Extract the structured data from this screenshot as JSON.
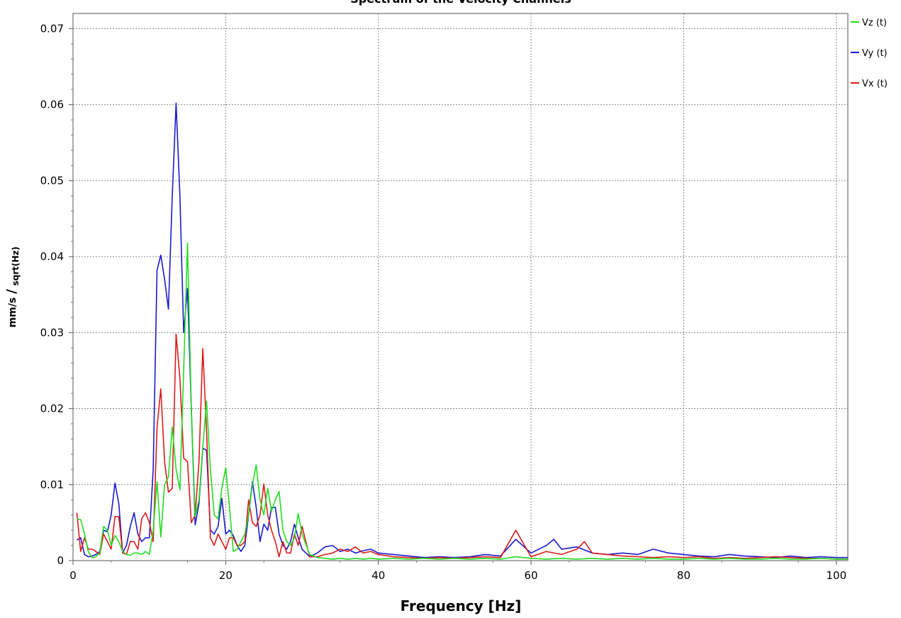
{
  "chart_data": {
    "type": "line",
    "title": "Spectrum of the Velocity Channels",
    "xlabel": "Frequency [Hz]",
    "ylabel_main": "mm/s",
    "ylabel_sub": "sqrt(Hz)",
    "xlim": [
      0,
      101.5
    ],
    "ylim": [
      0,
      0.072
    ],
    "xticks": [
      0,
      20,
      40,
      60,
      80,
      100
    ],
    "xtick_labels": [
      "0",
      "20",
      "40",
      "60",
      "80",
      "100"
    ],
    "yticks": [
      0,
      0.01,
      0.02,
      0.03,
      0.04,
      0.05,
      0.06,
      0.07
    ],
    "ytick_labels": [
      "0",
      "0.01",
      "0.02",
      "0.03",
      "0.04",
      "0.05",
      "0.06",
      "0.07"
    ],
    "grid": true,
    "legend_position": "top-right",
    "series": [
      {
        "name": "Vz (t)",
        "color": "#22dd22",
        "x": [
          0.5,
          1,
          1.5,
          2,
          2.5,
          3,
          3.5,
          4,
          4.5,
          5,
          5.5,
          6,
          6.5,
          7,
          7.5,
          8,
          8.5,
          9,
          9.5,
          10,
          10.5,
          11,
          11.5,
          12,
          12.5,
          13,
          13.5,
          14,
          14.5,
          15,
          15.5,
          16,
          16.5,
          17,
          17.5,
          18,
          18.5,
          19,
          19.5,
          20,
          20.5,
          21,
          21.5,
          22,
          22.5,
          23,
          23.5,
          24,
          24.5,
          25,
          25.5,
          26,
          26.5,
          27,
          27.5,
          28,
          28.5,
          29,
          29.5,
          30,
          31,
          32,
          33,
          34,
          35,
          36,
          37,
          38,
          39,
          40,
          42,
          44,
          46,
          48,
          50,
          52,
          54,
          56,
          58,
          60,
          62,
          64,
          66,
          68,
          70,
          72,
          74,
          76,
          78,
          80,
          82,
          84,
          86,
          88,
          90,
          92,
          94,
          96,
          98,
          100,
          101.5
        ],
        "y": [
          0.0055,
          0.0054,
          0.0035,
          0.0012,
          0.0004,
          0.0005,
          0.001,
          0.0045,
          0.004,
          0.002,
          0.0033,
          0.0025,
          0.0012,
          0.0008,
          0.0007,
          0.001,
          0.001,
          0.0008,
          0.0012,
          0.0008,
          0.004,
          0.0104,
          0.0031,
          0.01,
          0.011,
          0.0176,
          0.012,
          0.0093,
          0.025,
          0.0418,
          0.02,
          0.0058,
          0.008,
          0.015,
          0.021,
          0.012,
          0.006,
          0.0055,
          0.0095,
          0.0122,
          0.007,
          0.0012,
          0.0015,
          0.0025,
          0.0035,
          0.006,
          0.01,
          0.0126,
          0.008,
          0.006,
          0.0095,
          0.0065,
          0.008,
          0.0091,
          0.004,
          0.0025,
          0.002,
          0.003,
          0.0062,
          0.0035,
          0.0008,
          0.0004,
          0.0003,
          0.0002,
          0.0003,
          0.0002,
          0.0003,
          0.0002,
          0.0003,
          0.0002,
          0.0003,
          0.0002,
          0.0003,
          0.0002,
          0.0003,
          0.0002,
          0.0003,
          0.0002,
          0.0005,
          0.0003,
          0.0002,
          0.0003,
          0.0002,
          0.0003,
          0.0002,
          0.0003,
          0.0002,
          0.0003,
          0.0002,
          0.0002,
          0.0003,
          0.0002,
          0.0003,
          0.0002,
          0.0002,
          0.0003,
          0.0002,
          0.0002,
          0.0003,
          0.0002,
          0.0002
        ]
      },
      {
        "name": "Vy (t)",
        "color": "#1a1ad0",
        "x": [
          0.5,
          1,
          1.5,
          2,
          2.5,
          3,
          3.5,
          4,
          4.5,
          5,
          5.5,
          6,
          6.5,
          7,
          7.5,
          8,
          8.5,
          9,
          9.5,
          10,
          10.5,
          11,
          11.5,
          12,
          12.5,
          13,
          13.5,
          14,
          14.5,
          15,
          15.5,
          16,
          16.5,
          17,
          17.5,
          18,
          18.5,
          19,
          19.5,
          20,
          20.5,
          21,
          21.5,
          22,
          22.5,
          23,
          23.5,
          24,
          24.5,
          25,
          25.5,
          26,
          26.5,
          27,
          27.5,
          28,
          28.5,
          29,
          29.5,
          30,
          31,
          32,
          33,
          34,
          35,
          36,
          37,
          38,
          39,
          40,
          42,
          44,
          46,
          48,
          50,
          52,
          54,
          56,
          58,
          60,
          62,
          63,
          64,
          66,
          68,
          70,
          72,
          74,
          76,
          78,
          80,
          82,
          84,
          86,
          88,
          90,
          92,
          94,
          96,
          98,
          100,
          101.5
        ],
        "y": [
          0.0027,
          0.003,
          0.0008,
          0.0005,
          0.0006,
          0.0008,
          0.0012,
          0.004,
          0.0038,
          0.006,
          0.0102,
          0.0075,
          0.001,
          0.002,
          0.0045,
          0.0063,
          0.0035,
          0.0025,
          0.003,
          0.003,
          0.012,
          0.0382,
          0.0402,
          0.037,
          0.0331,
          0.048,
          0.0602,
          0.048,
          0.03,
          0.0358,
          0.02,
          0.0047,
          0.0075,
          0.0148,
          0.0145,
          0.004,
          0.0035,
          0.0045,
          0.0082,
          0.0035,
          0.004,
          0.0033,
          0.002,
          0.0012,
          0.002,
          0.006,
          0.0104,
          0.007,
          0.0025,
          0.0048,
          0.004,
          0.007,
          0.007,
          0.0035,
          0.002,
          0.0015,
          0.0025,
          0.0048,
          0.003,
          0.0015,
          0.0005,
          0.001,
          0.0018,
          0.002,
          0.0012,
          0.0015,
          0.001,
          0.0013,
          0.0015,
          0.001,
          0.0008,
          0.0006,
          0.0004,
          0.0005,
          0.0004,
          0.0005,
          0.0008,
          0.0006,
          0.0028,
          0.001,
          0.002,
          0.0028,
          0.0015,
          0.0018,
          0.001,
          0.0008,
          0.001,
          0.0008,
          0.0015,
          0.001,
          0.0008,
          0.0006,
          0.0005,
          0.0008,
          0.0006,
          0.0005,
          0.0004,
          0.0006,
          0.0004,
          0.0005,
          0.0004,
          0.0004
        ]
      },
      {
        "name": "Vx (t)",
        "color": "#dd1a1a",
        "x": [
          0.5,
          1,
          1.5,
          2,
          2.5,
          3,
          3.5,
          4,
          4.5,
          5,
          5.5,
          6,
          6.5,
          7,
          7.5,
          8,
          8.5,
          9,
          9.5,
          10,
          10.5,
          11,
          11.5,
          12,
          12.5,
          13,
          13.5,
          14,
          14.5,
          15,
          15.5,
          16,
          16.5,
          17,
          17.5,
          18,
          18.5,
          19,
          19.5,
          20,
          20.5,
          21,
          21.5,
          22,
          22.5,
          23,
          23.5,
          24,
          24.5,
          25,
          25.5,
          26,
          26.5,
          27,
          27.5,
          28,
          28.5,
          29,
          29.5,
          30,
          31,
          32,
          33,
          34,
          35,
          36,
          37,
          38,
          39,
          40,
          42,
          44,
          46,
          48,
          50,
          52,
          54,
          56,
          58,
          60,
          62,
          64,
          66,
          67,
          68,
          70,
          72,
          74,
          76,
          78,
          80,
          82,
          84,
          86,
          88,
          90,
          92,
          94,
          96,
          98,
          100,
          101.5
        ],
        "y": [
          0.0063,
          0.0012,
          0.003,
          0.0015,
          0.0015,
          0.0012,
          0.0008,
          0.0035,
          0.0025,
          0.0015,
          0.0058,
          0.0058,
          0.001,
          0.0008,
          0.0025,
          0.0025,
          0.0015,
          0.0055,
          0.0063,
          0.005,
          0.0025,
          0.0175,
          0.0226,
          0.013,
          0.009,
          0.0095,
          0.0298,
          0.024,
          0.0135,
          0.013,
          0.005,
          0.006,
          0.013,
          0.0279,
          0.017,
          0.003,
          0.002,
          0.0035,
          0.0025,
          0.0015,
          0.003,
          0.003,
          0.002,
          0.002,
          0.0025,
          0.008,
          0.005,
          0.0045,
          0.006,
          0.0101,
          0.006,
          0.004,
          0.0025,
          0.0005,
          0.0025,
          0.001,
          0.001,
          0.0035,
          0.002,
          0.0045,
          0.0005,
          0.0005,
          0.0008,
          0.001,
          0.0015,
          0.0012,
          0.0018,
          0.001,
          0.0012,
          0.0008,
          0.0005,
          0.0004,
          0.0003,
          0.0004,
          0.0003,
          0.0004,
          0.0005,
          0.0004,
          0.004,
          0.0005,
          0.0012,
          0.0008,
          0.0015,
          0.0025,
          0.001,
          0.0008,
          0.0006,
          0.0005,
          0.0004,
          0.0005,
          0.0004,
          0.0005,
          0.0003,
          0.0004,
          0.0003,
          0.0004,
          0.0005,
          0.0004,
          0.0003,
          0.0003,
          0.0002,
          0.0002
        ]
      }
    ]
  }
}
